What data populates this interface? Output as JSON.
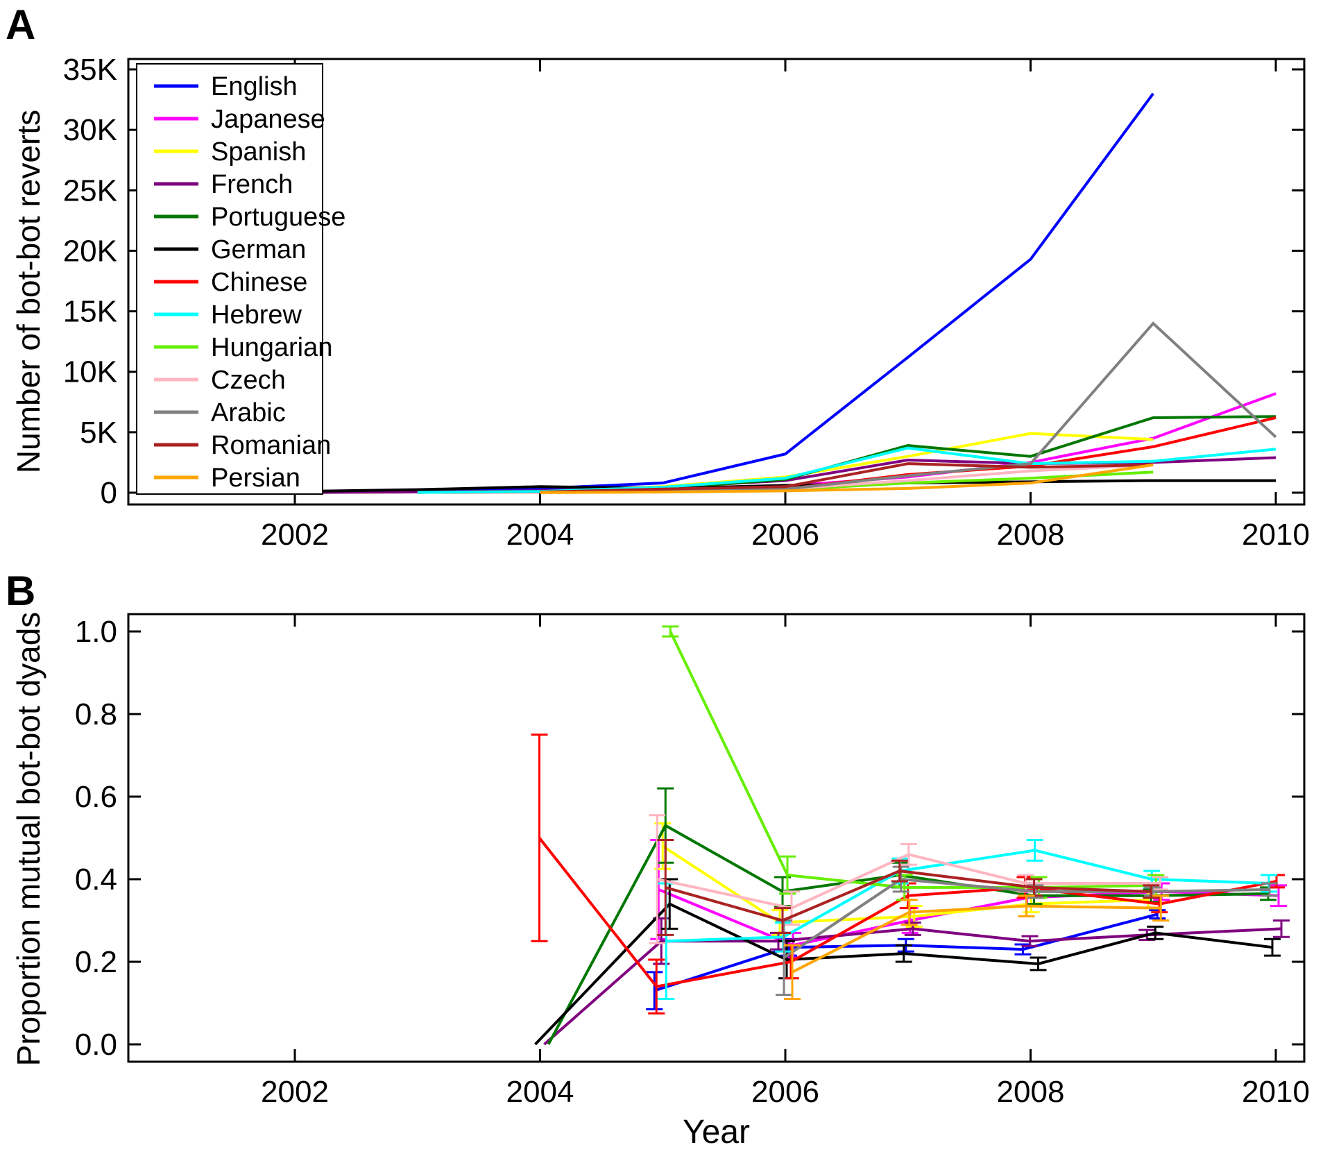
{
  "figure": {
    "panel_a": {
      "label": "A",
      "ylabel": "Number of bot-bot reverts"
    },
    "panel_b": {
      "label": "B",
      "ylabel": "Proportion mutual bot-bot dyads"
    },
    "xlabel": "Year",
    "legend": [
      "English",
      "Japanese",
      "Spanish",
      "French",
      "Portuguese",
      "German",
      "Chinese",
      "Hebrew",
      "Hungarian",
      "Czech",
      "Arabic",
      "Romanian",
      "Persian"
    ]
  },
  "chart_data": [
    {
      "type": "line",
      "panel": "A",
      "title": "",
      "xlabel": "",
      "ylabel": "Number of bot-bot reverts",
      "ylim": [
        0,
        35000
      ],
      "xlim": [
        2001,
        2010
      ],
      "grid": false,
      "legend_position": "upper left",
      "xticks": {
        "values": [
          2002,
          2004,
          2006,
          2008,
          2010
        ],
        "labels": [
          "2002",
          "2004",
          "2006",
          "2008",
          "2010"
        ]
      },
      "yticks": {
        "values": [
          0,
          5000,
          10000,
          15000,
          20000,
          25000,
          30000,
          35000
        ],
        "labels": [
          "0",
          "5K",
          "10K",
          "15K",
          "20K",
          "25K",
          "30K",
          "35K"
        ]
      },
      "series": [
        {
          "name": "English",
          "color": "#0000ff",
          "points": [
            [
              2001,
              20
            ],
            [
              2002,
              60
            ],
            [
              2003,
              150
            ],
            [
              2004,
              350
            ],
            [
              2005,
              800
            ],
            [
              2006,
              3200
            ],
            [
              2007,
              11200
            ],
            [
              2008,
              19300
            ],
            [
              2009,
              33000
            ]
          ]
        },
        {
          "name": "Japanese",
          "color": "#ff00ff",
          "points": [
            [
              2001,
              10
            ],
            [
              2002,
              20
            ],
            [
              2003,
              60
            ],
            [
              2004,
              120
            ],
            [
              2005,
              250
            ],
            [
              2006,
              550
            ],
            [
              2007,
              1300
            ],
            [
              2008,
              2500
            ],
            [
              2009,
              4500
            ],
            [
              2010,
              8200
            ]
          ]
        },
        {
          "name": "Spanish",
          "color": "#ffff00",
          "points": [
            [
              2002,
              10
            ],
            [
              2003,
              60
            ],
            [
              2004,
              130
            ],
            [
              2005,
              500
            ],
            [
              2006,
              1300
            ],
            [
              2007,
              3000
            ],
            [
              2008,
              4900
            ],
            [
              2009,
              4400
            ]
          ]
        },
        {
          "name": "French",
          "color": "#7f007f",
          "points": [
            [
              2002,
              10
            ],
            [
              2003,
              60
            ],
            [
              2004,
              160
            ],
            [
              2005,
              450
            ],
            [
              2006,
              1000
            ],
            [
              2007,
              2700
            ],
            [
              2008,
              2400
            ],
            [
              2009,
              2500
            ],
            [
              2010,
              2900
            ]
          ]
        },
        {
          "name": "Portuguese",
          "color": "#007700",
          "points": [
            [
              2003,
              20
            ],
            [
              2004,
              100
            ],
            [
              2005,
              350
            ],
            [
              2006,
              1100
            ],
            [
              2007,
              3900
            ],
            [
              2008,
              3000
            ],
            [
              2009,
              6200
            ],
            [
              2010,
              6300
            ]
          ]
        },
        {
          "name": "German",
          "color": "#000000",
          "points": [
            [
              2001,
              20
            ],
            [
              2002,
              100
            ],
            [
              2003,
              250
            ],
            [
              2004,
              500
            ],
            [
              2005,
              350
            ],
            [
              2006,
              600
            ],
            [
              2007,
              800
            ],
            [
              2008,
              900
            ],
            [
              2009,
              1000
            ],
            [
              2010,
              1000
            ]
          ]
        },
        {
          "name": "Chinese",
          "color": "#ff0000",
          "points": [
            [
              2003,
              20
            ],
            [
              2004,
              60
            ],
            [
              2005,
              150
            ],
            [
              2006,
              300
            ],
            [
              2007,
              1500
            ],
            [
              2008,
              2200
            ],
            [
              2009,
              3800
            ],
            [
              2010,
              6200
            ]
          ]
        },
        {
          "name": "Hebrew",
          "color": "#00ffff",
          "points": [
            [
              2003,
              20
            ],
            [
              2004,
              100
            ],
            [
              2005,
              450
            ],
            [
              2006,
              1200
            ],
            [
              2007,
              3700
            ],
            [
              2008,
              2400
            ],
            [
              2009,
              2600
            ],
            [
              2010,
              3600
            ]
          ]
        },
        {
          "name": "Hungarian",
          "color": "#66ee00",
          "points": [
            [
              2004,
              20
            ],
            [
              2005,
              100
            ],
            [
              2006,
              250
            ],
            [
              2007,
              800
            ],
            [
              2008,
              1200
            ],
            [
              2009,
              1700
            ]
          ]
        },
        {
          "name": "Czech",
          "color": "#ffb6c1",
          "points": [
            [
              2004,
              20
            ],
            [
              2005,
              100
            ],
            [
              2006,
              300
            ],
            [
              2007,
              1000
            ],
            [
              2008,
              1800
            ],
            [
              2009,
              2300
            ]
          ]
        },
        {
          "name": "Arabic",
          "color": "#808080",
          "points": [
            [
              2004,
              20
            ],
            [
              2005,
              100
            ],
            [
              2006,
              300
            ],
            [
              2007,
              1400
            ],
            [
              2008,
              2400
            ],
            [
              2009,
              14000
            ],
            [
              2010,
              4600
            ]
          ]
        },
        {
          "name": "Romanian",
          "color": "#aa2222",
          "points": [
            [
              2004,
              50
            ],
            [
              2005,
              300
            ],
            [
              2006,
              500
            ],
            [
              2007,
              2400
            ],
            [
              2008,
              2100
            ],
            [
              2009,
              2300
            ]
          ]
        },
        {
          "name": "Persian",
          "color": "#ffa500",
          "points": [
            [
              2004,
              10
            ],
            [
              2005,
              50
            ],
            [
              2006,
              150
            ],
            [
              2007,
              350
            ],
            [
              2008,
              800
            ],
            [
              2009,
              2300
            ]
          ]
        }
      ]
    },
    {
      "type": "line",
      "panel": "B",
      "title": "",
      "xlabel": "Year",
      "ylabel": "Proportion mutual bot-bot dyads",
      "ylim": [
        0.0,
        1.0
      ],
      "xlim": [
        2001,
        2010
      ],
      "grid": false,
      "error_bars": true,
      "xticks": {
        "values": [
          2002,
          2004,
          2006,
          2008,
          2010
        ],
        "labels": [
          "2002",
          "2004",
          "2006",
          "2008",
          "2010"
        ]
      },
      "yticks": {
        "values": [
          0.0,
          0.2,
          0.4,
          0.6,
          0.8,
          1.0
        ],
        "labels": [
          "0.0",
          "0.2",
          "0.4",
          "0.6",
          "0.8",
          "1.0"
        ]
      },
      "series": [
        {
          "name": "English",
          "color": "#0000ff",
          "points": [
            [
              2005,
              0.13,
              0.045
            ],
            [
              2006,
              0.235,
              0.02
            ],
            [
              2007,
              0.24,
              0.015
            ],
            [
              2008,
              0.23,
              0.012
            ],
            [
              2009,
              0.315,
              0.01
            ]
          ]
        },
        {
          "name": "Japanese",
          "color": "#ff00ff",
          "points": [
            [
              2005,
              0.375,
              0.12
            ],
            [
              2006,
              0.24,
              0.03
            ],
            [
              2007,
              0.3,
              0.03
            ],
            [
              2008,
              0.355,
              0.02
            ],
            [
              2009,
              0.37,
              0.02
            ],
            [
              2010,
              0.36,
              0.025
            ]
          ]
        },
        {
          "name": "Spanish",
          "color": "#ffff00",
          "points": [
            [
              2005,
              0.48,
              0.055
            ],
            [
              2006,
              0.295,
              0.03
            ],
            [
              2007,
              0.31,
              0.025
            ],
            [
              2008,
              0.34,
              0.02
            ],
            [
              2009,
              0.35,
              0.02
            ]
          ]
        },
        {
          "name": "French",
          "color": "#7f007f",
          "points": [
            [
              2004,
              0.0,
              0
            ],
            [
              2005,
              0.25,
              0.055
            ],
            [
              2006,
              0.25,
              0.02
            ],
            [
              2007,
              0.28,
              0.015
            ],
            [
              2008,
              0.25,
              0.012
            ],
            [
              2009,
              0.265,
              0.012
            ],
            [
              2010,
              0.28,
              0.02
            ]
          ]
        },
        {
          "name": "Portuguese",
          "color": "#007700",
          "points": [
            [
              2004,
              0.0,
              0
            ],
            [
              2005,
              0.53,
              0.09
            ],
            [
              2006,
              0.37,
              0.035
            ],
            [
              2007,
              0.41,
              0.03
            ],
            [
              2008,
              0.36,
              0.02
            ],
            [
              2009,
              0.36,
              0.015
            ],
            [
              2010,
              0.365,
              0.015
            ]
          ]
        },
        {
          "name": "German",
          "color": "#000000",
          "points": [
            [
              2004,
              0.0,
              0
            ],
            [
              2005,
              0.34,
              0.06
            ],
            [
              2006,
              0.205,
              0.045
            ],
            [
              2007,
              0.22,
              0.02
            ],
            [
              2008,
              0.195,
              0.015
            ],
            [
              2009,
              0.27,
              0.015
            ],
            [
              2010,
              0.235,
              0.02
            ]
          ]
        },
        {
          "name": "Chinese",
          "color": "#ff0000",
          "points": [
            [
              2004,
              0.5,
              0.25
            ],
            [
              2005,
              0.14,
              0.065
            ],
            [
              2006,
              0.2,
              0.04
            ],
            [
              2007,
              0.36,
              0.03
            ],
            [
              2008,
              0.38,
              0.025
            ],
            [
              2009,
              0.34,
              0.02
            ],
            [
              2010,
              0.395,
              0.015
            ]
          ]
        },
        {
          "name": "Hebrew",
          "color": "#00ffff",
          "points": [
            [
              2005,
              0.25,
              0.14
            ],
            [
              2006,
              0.26,
              0.035
            ],
            [
              2007,
              0.42,
              0.03
            ],
            [
              2008,
              0.47,
              0.025
            ],
            [
              2009,
              0.4,
              0.02
            ],
            [
              2010,
              0.39,
              0.02
            ]
          ]
        },
        {
          "name": "Hungarian",
          "color": "#66ee00",
          "points": [
            [
              2005,
              1.0,
              0.012
            ],
            [
              2006,
              0.41,
              0.045
            ],
            [
              2007,
              0.38,
              0.03
            ],
            [
              2008,
              0.38,
              0.025
            ],
            [
              2009,
              0.385,
              0.025
            ]
          ]
        },
        {
          "name": "Czech",
          "color": "#ffb6c1",
          "points": [
            [
              2005,
              0.4,
              0.155
            ],
            [
              2006,
              0.33,
              0.04
            ],
            [
              2007,
              0.46,
              0.025
            ],
            [
              2008,
              0.39,
              0.02
            ],
            [
              2009,
              0.39,
              0.015
            ]
          ]
        },
        {
          "name": "Arabic",
          "color": "#808080",
          "points": [
            [
              2006,
              0.21,
              0.09
            ],
            [
              2007,
              0.4,
              0.03
            ],
            [
              2008,
              0.37,
              0.015
            ],
            [
              2009,
              0.37,
              0.01
            ],
            [
              2010,
              0.375,
              0.015
            ]
          ]
        },
        {
          "name": "Romanian",
          "color": "#aa2222",
          "points": [
            [
              2005,
              0.38,
              0.115
            ],
            [
              2006,
              0.3,
              0.03
            ],
            [
              2007,
              0.42,
              0.025
            ],
            [
              2008,
              0.38,
              0.02
            ],
            [
              2009,
              0.37,
              0.015
            ]
          ]
        },
        {
          "name": "Persian",
          "color": "#ffa500",
          "points": [
            [
              2006,
              0.175,
              0.065
            ],
            [
              2007,
              0.32,
              0.03
            ],
            [
              2008,
              0.335,
              0.025
            ],
            [
              2009,
              0.33,
              0.03
            ]
          ]
        }
      ]
    }
  ]
}
